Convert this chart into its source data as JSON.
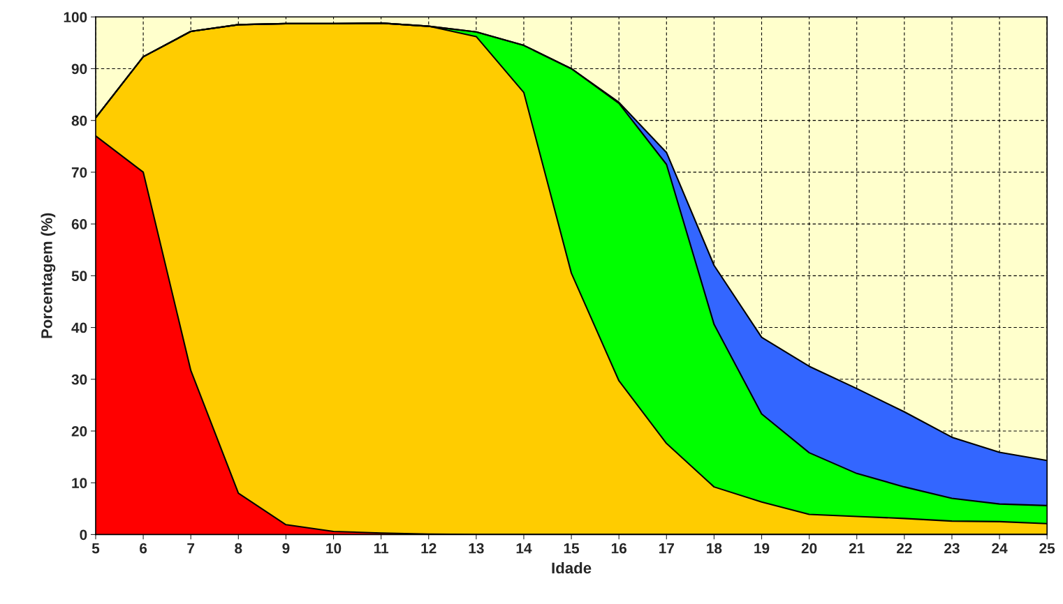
{
  "chart_data": {
    "type": "area",
    "stacked": true,
    "xlabel": "Idade",
    "ylabel": "Porcentagem (%)",
    "x": [
      5,
      6,
      7,
      8,
      9,
      10,
      11,
      12,
      13,
      14,
      15,
      16,
      17,
      18,
      19,
      20,
      21,
      22,
      23,
      24,
      25
    ],
    "series": [
      {
        "color": "#ff0000",
        "values": [
          77,
          70,
          31.7,
          8,
          1.9,
          0.6,
          0.3,
          0.1,
          0,
          0,
          0,
          0,
          0,
          0,
          0,
          0,
          0,
          0,
          0,
          0,
          0
        ]
      },
      {
        "color": "#ffcc00",
        "values": [
          3.5,
          22.3,
          65.5,
          90.5,
          96.8,
          98.1,
          98.5,
          98.1,
          96.2,
          85.4,
          50.5,
          29.7,
          17.6,
          9.2,
          6.3,
          3.9,
          3.5,
          3.1,
          2.6,
          2.5,
          2.1
        ]
      },
      {
        "color": "#00ff00",
        "values": [
          0,
          0,
          0,
          0,
          0,
          0,
          0,
          0,
          0.9,
          9.1,
          39.5,
          53.6,
          53.9,
          31.4,
          17,
          11.9,
          8.3,
          6.1,
          4.4,
          3.4,
          3.5
        ]
      },
      {
        "color": "#3366ff",
        "values": [
          0,
          0,
          0,
          0,
          0,
          0,
          0,
          0,
          0,
          0,
          0,
          0.2,
          2.3,
          11.4,
          14.8,
          16.7,
          16.4,
          14.5,
          11.8,
          10,
          8.7
        ]
      }
    ],
    "xlim": [
      5,
      25
    ],
    "xticks": [
      5,
      6,
      7,
      8,
      9,
      10,
      11,
      12,
      13,
      14,
      15,
      16,
      17,
      18,
      19,
      20,
      21,
      22,
      23,
      24,
      25
    ],
    "ylim": [
      0,
      100
    ],
    "yticks": [
      0,
      10,
      20,
      30,
      40,
      50,
      60,
      70,
      80,
      90,
      100
    ],
    "bands": [
      {
        "axis": "x",
        "from": 5,
        "to": 25,
        "color": "#ffffcc"
      }
    ],
    "grid": true
  }
}
